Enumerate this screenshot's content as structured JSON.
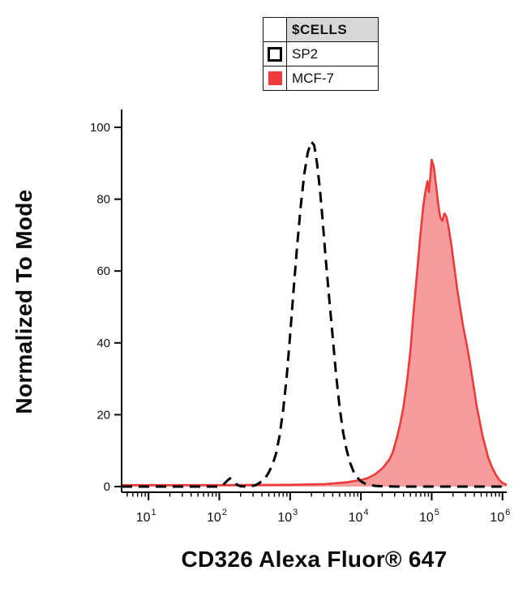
{
  "legend": {
    "title": "$CELLS",
    "entries": [
      {
        "label": "SP2",
        "swatch": "open-square",
        "color": "#000000"
      },
      {
        "label": "MCF-7",
        "swatch": "filled-square",
        "color": "#ee3a3a"
      }
    ]
  },
  "axes": {
    "y": {
      "label": "Normalized To Mode",
      "ticks": [
        0,
        20,
        40,
        60,
        80,
        100
      ]
    },
    "x": {
      "label": "CD326 Alexa Fluor® 647",
      "scale": "log10",
      "tick_base": 10,
      "tick_exponents": [
        1,
        2,
        3,
        4,
        5,
        6
      ]
    }
  },
  "chart_data": {
    "type": "area",
    "title": "",
    "xlabel": "CD326 Alexa Fluor® 647",
    "ylabel": "Normalized To Mode",
    "x_scale": "log10",
    "x_range_log10": [
      0.62,
      6.06
    ],
    "ylim": [
      0,
      105
    ],
    "grid": false,
    "legend_position": "top-center",
    "series": [
      {
        "name": "SP2",
        "style": "dashed-line",
        "color": "#000000",
        "fill_color": "none",
        "fill_opacity": 0,
        "peak": {
          "x_log10": 3.3,
          "y": 96
        },
        "points_log10x_y": [
          [
            0.62,
            0
          ],
          [
            1.5,
            0
          ],
          [
            2.0,
            0
          ],
          [
            2.05,
            0.4
          ],
          [
            2.1,
            1.4
          ],
          [
            2.15,
            2.3
          ],
          [
            2.2,
            1.6
          ],
          [
            2.25,
            0.5
          ],
          [
            2.3,
            0.1
          ],
          [
            2.4,
            0
          ],
          [
            2.5,
            0.3
          ],
          [
            2.55,
            0.8
          ],
          [
            2.6,
            1.5
          ],
          [
            2.65,
            2.4
          ],
          [
            2.7,
            4
          ],
          [
            2.75,
            6
          ],
          [
            2.8,
            9
          ],
          [
            2.85,
            14
          ],
          [
            2.9,
            21
          ],
          [
            2.95,
            30
          ],
          [
            3.0,
            42
          ],
          [
            3.05,
            55
          ],
          [
            3.1,
            67
          ],
          [
            3.15,
            78
          ],
          [
            3.2,
            87
          ],
          [
            3.25,
            93
          ],
          [
            3.3,
            96
          ],
          [
            3.34,
            95
          ],
          [
            3.38,
            90
          ],
          [
            3.42,
            83
          ],
          [
            3.46,
            74
          ],
          [
            3.5,
            64
          ],
          [
            3.55,
            53
          ],
          [
            3.6,
            42
          ],
          [
            3.65,
            31
          ],
          [
            3.7,
            22
          ],
          [
            3.75,
            15
          ],
          [
            3.8,
            10
          ],
          [
            3.85,
            6.5
          ],
          [
            3.9,
            4
          ],
          [
            3.95,
            2.5
          ],
          [
            4.0,
            1.5
          ],
          [
            4.05,
            0.9
          ],
          [
            4.1,
            0.5
          ],
          [
            4.2,
            0.2
          ],
          [
            4.3,
            0.1
          ],
          [
            4.5,
            0
          ],
          [
            6.06,
            0
          ]
        ]
      },
      {
        "name": "MCF-7",
        "style": "filled-area",
        "color": "#ee3a3a",
        "fill_color": "#ee3a3a",
        "fill_opacity": 0.5,
        "peak": {
          "x_log10": 5.0,
          "y": 91
        },
        "points_log10x_y": [
          [
            0.62,
            0.4
          ],
          [
            2.0,
            0.4
          ],
          [
            3.0,
            0.5
          ],
          [
            3.5,
            0.7
          ],
          [
            3.8,
            1.2
          ],
          [
            4.0,
            1.8
          ],
          [
            4.1,
            2.4
          ],
          [
            4.2,
            3.4
          ],
          [
            4.3,
            5
          ],
          [
            4.4,
            7.5
          ],
          [
            4.45,
            9.5
          ],
          [
            4.5,
            13
          ],
          [
            4.55,
            17
          ],
          [
            4.6,
            22
          ],
          [
            4.65,
            29
          ],
          [
            4.7,
            38
          ],
          [
            4.75,
            50
          ],
          [
            4.8,
            61
          ],
          [
            4.84,
            70
          ],
          [
            4.88,
            78
          ],
          [
            4.91,
            82
          ],
          [
            4.94,
            85
          ],
          [
            4.96,
            82
          ],
          [
            4.98,
            86
          ],
          [
            5.0,
            91
          ],
          [
            5.03,
            89
          ],
          [
            5.06,
            84
          ],
          [
            5.09,
            79
          ],
          [
            5.12,
            75
          ],
          [
            5.15,
            74
          ],
          [
            5.18,
            76
          ],
          [
            5.21,
            75
          ],
          [
            5.24,
            72
          ],
          [
            5.28,
            67
          ],
          [
            5.32,
            61
          ],
          [
            5.36,
            55
          ],
          [
            5.4,
            50
          ],
          [
            5.44,
            45
          ],
          [
            5.48,
            41
          ],
          [
            5.52,
            37
          ],
          [
            5.56,
            32
          ],
          [
            5.6,
            27
          ],
          [
            5.64,
            22
          ],
          [
            5.68,
            18
          ],
          [
            5.72,
            14
          ],
          [
            5.76,
            11
          ],
          [
            5.8,
            8
          ],
          [
            5.85,
            5.5
          ],
          [
            5.9,
            3.5
          ],
          [
            5.95,
            2
          ],
          [
            6.0,
            1
          ],
          [
            6.06,
            0.5
          ]
        ]
      }
    ]
  }
}
